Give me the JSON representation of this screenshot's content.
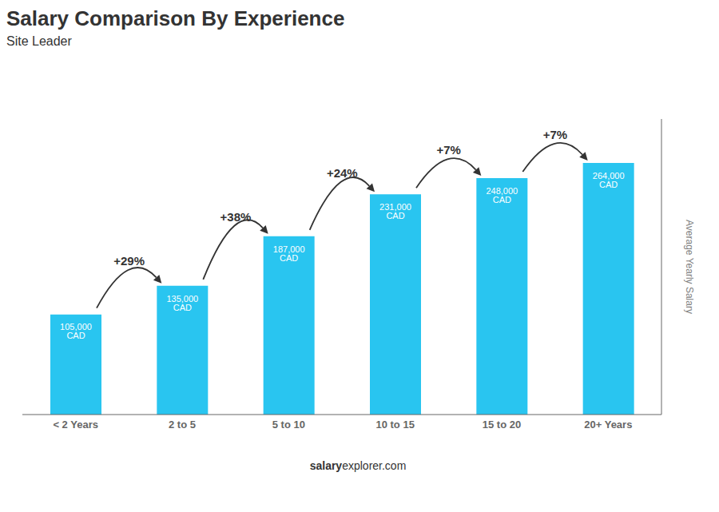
{
  "chart_data": {
    "type": "bar",
    "title": "Salary Comparison By Experience",
    "subtitle": "Site Leader",
    "ylabel": "Average Yearly Salary",
    "categories": [
      "< 2 Years",
      "2 to 5",
      "5 to 10",
      "10 to 15",
      "15 to 20",
      "20+ Years"
    ],
    "values": [
      105000,
      135000,
      187000,
      231000,
      248000,
      264000
    ],
    "value_labels": [
      "105,000 CAD",
      "135,000 CAD",
      "187,000 CAD",
      "231,000 CAD",
      "248,000 CAD",
      "264,000 CAD"
    ],
    "data_labels": true,
    "color": "#29c5f0",
    "ylim": [
      0,
      310000
    ],
    "tick_labels": "x",
    "annotations": [
      {
        "text": "+29%",
        "from": "< 2 Years",
        "to": "2 to 5"
      },
      {
        "text": "+38%",
        "from": "2 to 5",
        "to": "5 to 10"
      },
      {
        "text": "+24%",
        "from": "5 to 10",
        "to": "10 to 15"
      },
      {
        "text": "+7%",
        "from": "10 to 15",
        "to": "15 to 20"
      },
      {
        "text": "+7%",
        "from": "15 to 20",
        "to": "20+ Years"
      }
    ],
    "footer": [
      "salary",
      "explorer.com"
    ]
  }
}
